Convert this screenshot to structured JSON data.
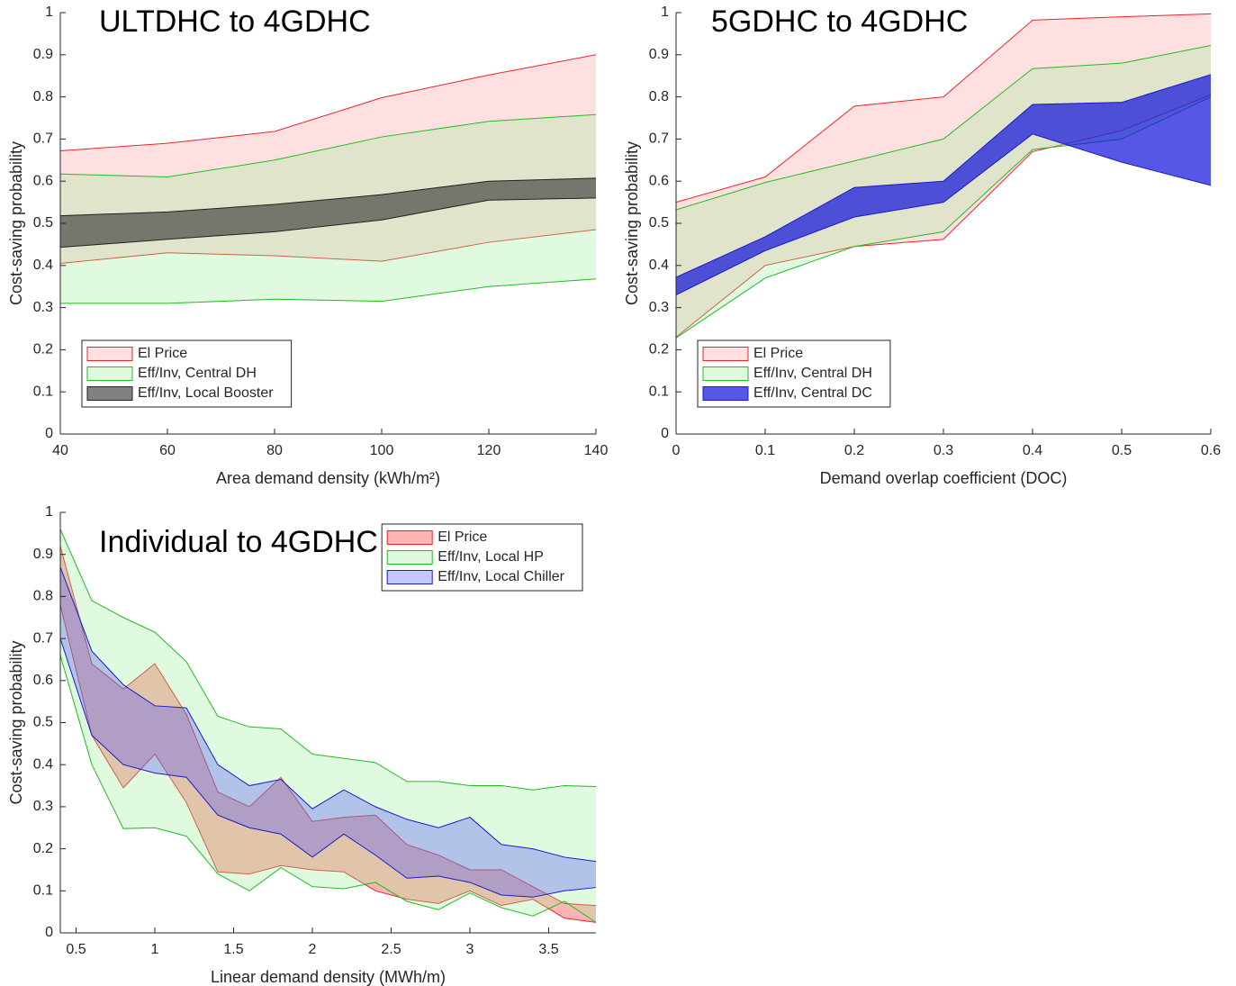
{
  "chart_data": [
    {
      "type": "band",
      "title": "ULTDHC to 4GDHC",
      "x_label": "Area demand density (kWh/m²)",
      "y_label": "Cost-saving probability",
      "x": [
        40,
        60,
        80,
        100,
        120,
        140
      ],
      "xlim": [
        40,
        140
      ],
      "xticks": [
        40,
        60,
        80,
        100,
        120,
        140
      ],
      "ylim": [
        0,
        1
      ],
      "yticks": [
        0,
        0.1,
        0.2,
        0.3,
        0.4,
        0.5,
        0.6,
        0.7,
        0.8,
        0.9,
        1
      ],
      "legend": "lower left",
      "series": [
        {
          "name": "El Price",
          "color": "#e8252a",
          "fill": "#ff9999",
          "alpha": 0.3,
          "upper": [
            0.672,
            0.69,
            0.718,
            0.798,
            0.852,
            0.9
          ],
          "lower": [
            0.405,
            0.43,
            0.423,
            0.41,
            0.455,
            0.485
          ]
        },
        {
          "name": "Eff/Inv, Central DH",
          "color": "#22bb22",
          "fill": "#99ee99",
          "alpha": 0.3,
          "upper": [
            0.617,
            0.61,
            0.65,
            0.705,
            0.742,
            0.758
          ],
          "lower": [
            0.31,
            0.31,
            0.32,
            0.315,
            0.35,
            0.368
          ]
        },
        {
          "name": "Eff/Inv, Local Booster",
          "color": "#222222",
          "fill": "#333333",
          "alpha": 0.62,
          "upper": [
            0.518,
            0.527,
            0.545,
            0.568,
            0.6,
            0.607
          ],
          "lower": [
            0.443,
            0.462,
            0.48,
            0.508,
            0.555,
            0.56
          ]
        }
      ]
    },
    {
      "type": "band",
      "title": "5GDHC to 4GDHC",
      "x_label": "Demand overlap coefficient (DOC)",
      "y_label": "Cost-saving probability",
      "x": [
        0,
        0.1,
        0.2,
        0.3,
        0.4,
        0.5,
        0.6
      ],
      "xlim": [
        0,
        0.6
      ],
      "xticks": [
        0,
        0.1,
        0.2,
        0.3,
        0.4,
        0.5,
        0.6
      ],
      "ylim": [
        0,
        1
      ],
      "yticks": [
        0,
        0.1,
        0.2,
        0.3,
        0.4,
        0.5,
        0.6,
        0.7,
        0.8,
        0.9,
        1
      ],
      "legend": "lower left",
      "series": [
        {
          "name": "El Price",
          "color": "#e8252a",
          "fill": "#ff9999",
          "alpha": 0.3,
          "upper": [
            0.55,
            0.61,
            0.778,
            0.8,
            0.982,
            0.99,
            0.997
          ],
          "lower": [
            0.23,
            0.4,
            0.445,
            0.462,
            0.67,
            0.72,
            0.805
          ]
        },
        {
          "name": "Eff/Inv, Central DH",
          "color": "#22bb22",
          "fill": "#99ee99",
          "alpha": 0.3,
          "upper": [
            0.532,
            0.597,
            0.648,
            0.7,
            0.867,
            0.88,
            0.922
          ],
          "lower": [
            0.228,
            0.37,
            0.445,
            0.48,
            0.675,
            0.7,
            0.8
          ]
        },
        {
          "name": "Eff/Inv, Central DC",
          "color": "#1a1acc",
          "fill": "#1010dd",
          "alpha": 0.7,
          "upper": [
            0.372,
            0.468,
            0.585,
            0.6,
            0.782,
            0.787,
            0.853
          ],
          "lower": [
            0.33,
            0.435,
            0.515,
            0.55,
            0.712,
            0.645,
            0.59
          ]
        }
      ]
    },
    {
      "type": "band",
      "title": "Individual to 4GDHC",
      "x_label": "Linear demand density (MWh/m)",
      "y_label": "Cost-saving probability",
      "x": [
        0.4,
        0.6,
        0.8,
        1,
        1.2,
        1.4,
        1.6,
        1.8,
        2,
        2.2,
        2.4,
        2.6,
        2.8,
        3,
        3.2,
        3.4,
        3.6,
        3.8
      ],
      "xlim": [
        0.4,
        3.8
      ],
      "xticks": [
        0.5,
        1,
        1.5,
        2,
        2.5,
        3,
        3.5
      ],
      "ylim": [
        0,
        1
      ],
      "yticks": [
        0,
        0.1,
        0.2,
        0.3,
        0.4,
        0.5,
        0.6,
        0.7,
        0.8,
        0.9,
        1
      ],
      "legend": "upper right",
      "series": [
        {
          "name": "El Price",
          "color": "#e8252a",
          "fill": "#ff4444",
          "alpha": 0.4,
          "upper": [
            0.92,
            0.64,
            0.58,
            0.64,
            0.52,
            0.335,
            0.3,
            0.37,
            0.265,
            0.275,
            0.28,
            0.21,
            0.185,
            0.15,
            0.15,
            0.11,
            0.07,
            0.065
          ],
          "lower": [
            0.78,
            0.47,
            0.345,
            0.425,
            0.31,
            0.145,
            0.14,
            0.16,
            0.15,
            0.145,
            0.1,
            0.08,
            0.07,
            0.1,
            0.065,
            0.08,
            0.035,
            0.025
          ]
        },
        {
          "name": "Eff/Inv, Local HP",
          "color": "#22bb22",
          "fill": "#99ee99",
          "alpha": 0.3,
          "upper": [
            0.96,
            0.79,
            0.75,
            0.715,
            0.645,
            0.515,
            0.49,
            0.485,
            0.425,
            0.415,
            0.405,
            0.36,
            0.36,
            0.35,
            0.35,
            0.34,
            0.35,
            0.348
          ],
          "lower": [
            0.66,
            0.4,
            0.248,
            0.25,
            0.23,
            0.14,
            0.1,
            0.155,
            0.11,
            0.105,
            0.12,
            0.075,
            0.055,
            0.095,
            0.06,
            0.04,
            0.075,
            0.025
          ]
        },
        {
          "name": "Eff/Inv, Local Chiller",
          "color": "#1a1acc",
          "fill": "#4444ff",
          "alpha": 0.3,
          "upper": [
            0.87,
            0.67,
            0.59,
            0.54,
            0.535,
            0.4,
            0.35,
            0.365,
            0.295,
            0.34,
            0.3,
            0.27,
            0.25,
            0.275,
            0.21,
            0.2,
            0.18,
            0.17
          ],
          "lower": [
            0.7,
            0.47,
            0.4,
            0.38,
            0.37,
            0.28,
            0.25,
            0.235,
            0.18,
            0.235,
            0.185,
            0.13,
            0.135,
            0.12,
            0.09,
            0.085,
            0.1,
            0.108
          ]
        }
      ]
    }
  ]
}
